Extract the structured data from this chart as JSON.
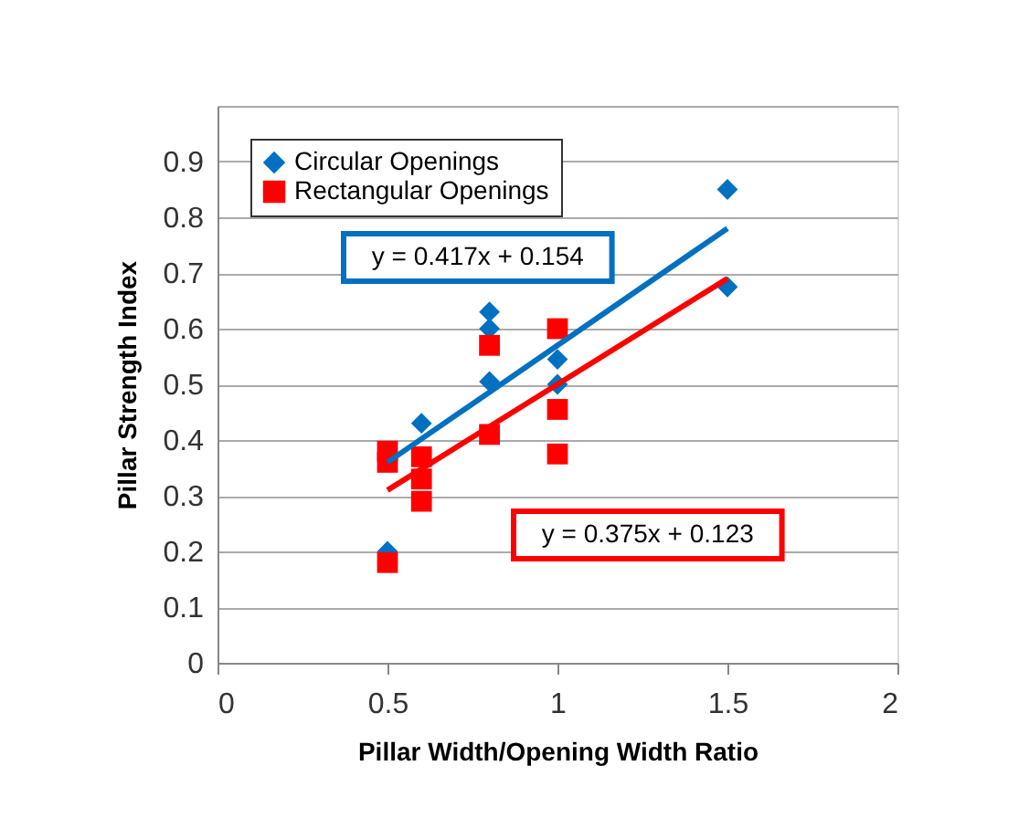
{
  "chart_data": {
    "type": "scatter",
    "xlabel": "Pillar Width/Opening Width Ratio",
    "ylabel": "Pillar Strength Index",
    "xlim": [
      0,
      2
    ],
    "xticks": [
      0,
      0.5,
      1,
      1.5,
      2
    ],
    "ylim": [
      0,
      1
    ],
    "yticks": [
      0,
      0.1,
      0.2,
      0.3,
      0.4,
      0.5,
      0.6,
      0.7,
      0.8,
      0.9,
      {
        "value": 1,
        "label": null
      }
    ],
    "grid": "y",
    "legend": "top left",
    "series": [
      {
        "name": "Circular Openings",
        "color": "#0070c0",
        "marker": "diamond",
        "x": [
          0.5,
          0.6,
          0.8,
          0.8,
          0.8,
          1,
          1,
          1.5,
          1.5
        ],
        "values": [
          0.2,
          0.43,
          0.63,
          0.6,
          0.505,
          0.545,
          0.5,
          0.85,
          0.675
        ]
      },
      {
        "name": "Rectangular Openings",
        "color": "#ff0000",
        "marker": "square",
        "x": [
          0.5,
          0.5,
          0.5,
          0.6,
          0.6,
          0.6,
          0.8,
          0.8,
          1,
          1,
          1
        ],
        "values": [
          0.18,
          0.38,
          0.36,
          0.37,
          0.33,
          0.29,
          0.57,
          0.41,
          0.6,
          0.455,
          0.375
        ]
      },
      {
        "type": "line",
        "color": "#0070c0",
        "marker": "none",
        "x": [
          0.5,
          1.5
        ],
        "values": [
          0.36,
          0.78
        ]
      },
      {
        "type": "line",
        "color": "#ff0000",
        "marker": "none",
        "x": [
          0.5,
          1.5
        ],
        "values": [
          0.31,
          0.69
        ]
      }
    ],
    "annotations": [
      "y = 0.417x + 0.154",
      "y = 0.375x + 0.123"
    ]
  }
}
